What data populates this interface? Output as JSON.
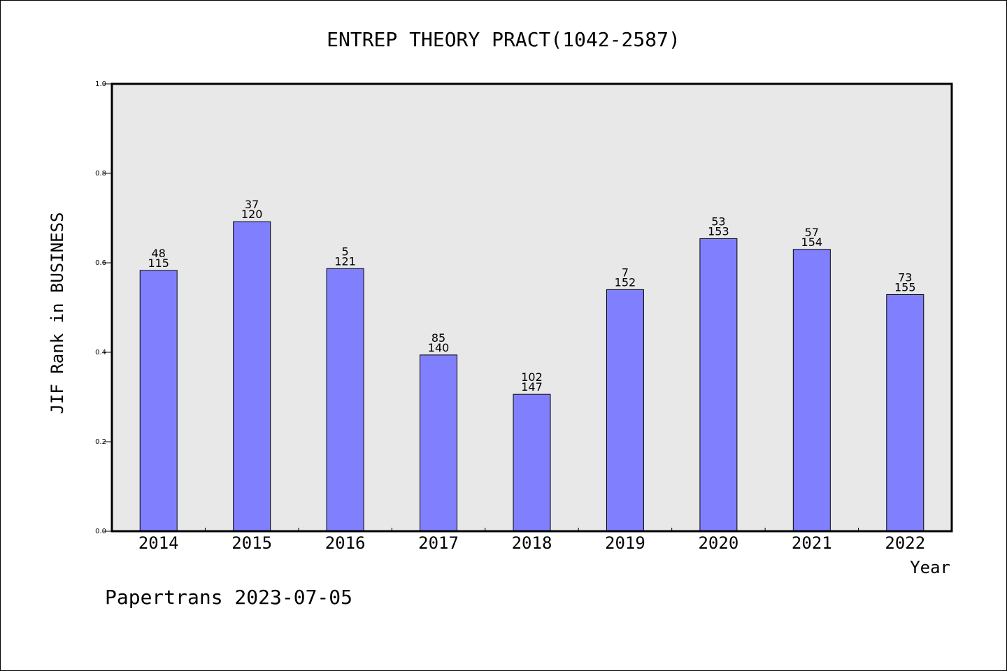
{
  "chart_data": {
    "type": "bar",
    "title": "ENTREP THEORY PRACT(1042-2587)",
    "xlabel": "Year",
    "ylabel": "JIF Rank in BUSINESS",
    "ylim": [
      0,
      1.0
    ],
    "yticks": [
      "0.0",
      "0.2",
      "0.4",
      "0.6",
      "0.8",
      "1.0"
    ],
    "categories": [
      "2014",
      "2015",
      "2016",
      "2017",
      "2018",
      "2019",
      "2020",
      "2021",
      "2022"
    ],
    "values": [
      0.583,
      0.692,
      0.587,
      0.394,
      0.306,
      0.54,
      0.654,
      0.63,
      0.529
    ],
    "rank": [
      "48",
      "37",
      "5",
      "85",
      "102",
      "7",
      "53",
      "57",
      "73"
    ],
    "total": [
      "115",
      "120",
      "121",
      "140",
      "147",
      "152",
      "153",
      "154",
      "155"
    ],
    "grid": false,
    "colors": {
      "bar": "#8080ff",
      "plot_bg": "#e8e8e8"
    }
  },
  "footer": "Papertrans 2023-07-05"
}
